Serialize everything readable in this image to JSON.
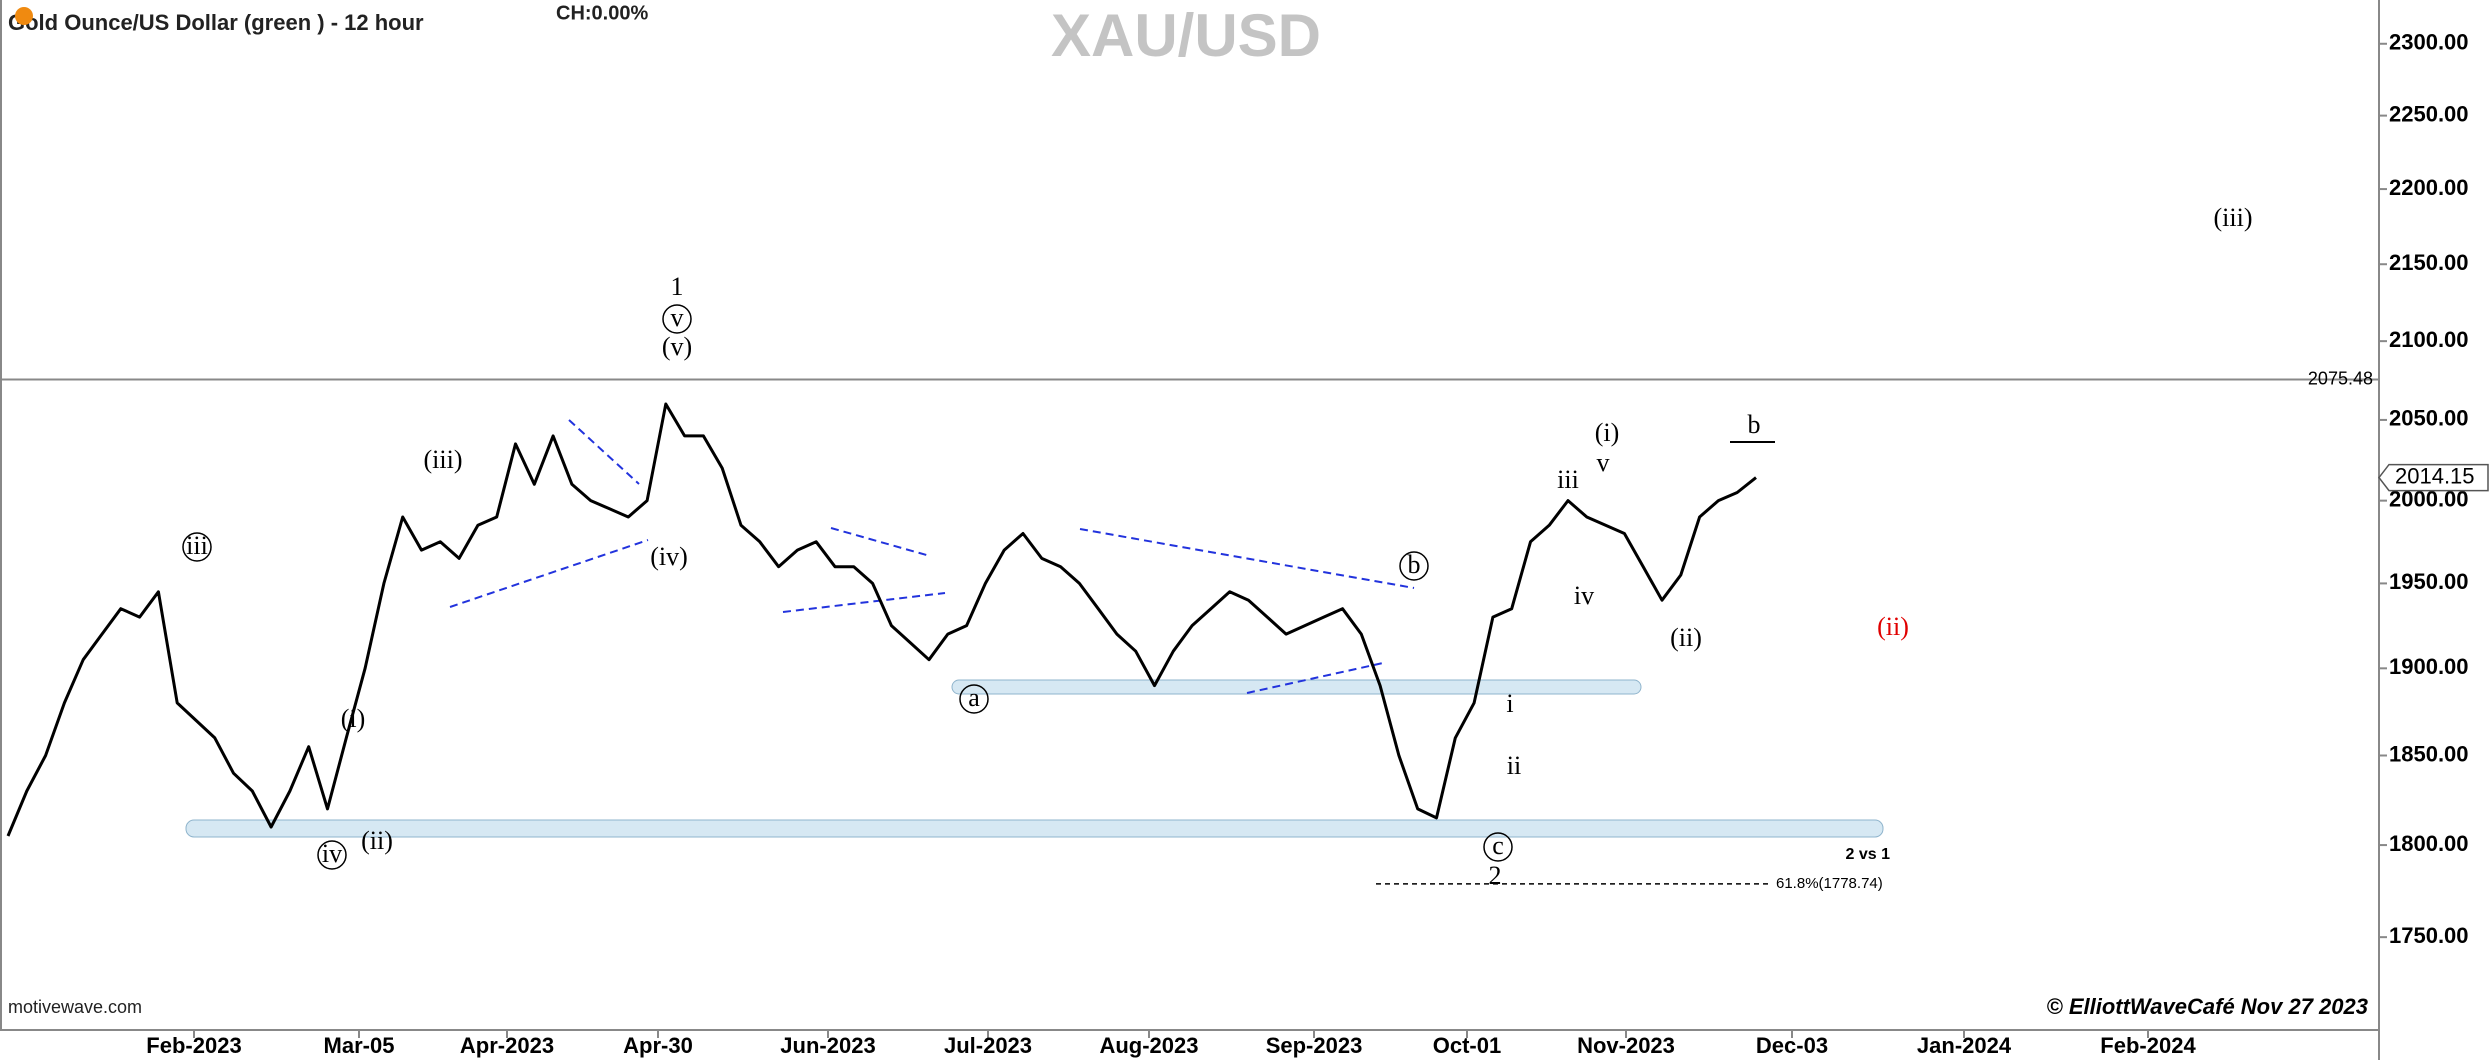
{
  "chart_data": {
    "type": "line",
    "title": "Gold Ounce/US Dollar (green ) - 12 hour",
    "change": "CH:0.00%",
    "watermark": "XAU/USD",
    "source": "motivewave.com",
    "credit": "© ElliottWaveCafé Nov 27 2023",
    "x_labels": [
      "Feb-2023",
      "Mar-05",
      "Apr-2023",
      "Apr-30",
      "Jun-2023",
      "Jul-2023",
      "Aug-2023",
      "Sep-2023",
      "Oct-01",
      "Nov-2023",
      "Dec-03",
      "Jan-2024",
      "Feb-2024"
    ],
    "series": [
      {
        "color": "#000000",
        "values": [
          1805,
          1830,
          1850,
          1880,
          1905,
          1920,
          1935,
          1930,
          1945,
          1880,
          1870,
          1860,
          1840,
          1830,
          1810,
          1830,
          1855,
          1820,
          1860,
          1900,
          1950,
          1990,
          1970,
          1975,
          1965,
          1985,
          1990,
          2035,
          2010,
          2040,
          2010,
          2000,
          1995,
          1990,
          2000,
          2060,
          2040,
          2040,
          2020,
          1985,
          1975,
          1960,
          1970,
          1975,
          1960,
          1960,
          1950,
          1925,
          1915,
          1905,
          1920,
          1925,
          1950,
          1970,
          1980,
          1965,
          1960,
          1950,
          1935,
          1920,
          1910,
          1890,
          1910,
          1925,
          1935,
          1945,
          1940,
          1930,
          1920,
          1925,
          1930,
          1935,
          1920,
          1890,
          1850,
          1820,
          1815,
          1860,
          1880,
          1930,
          1935,
          1975,
          1985,
          2000,
          1990,
          1985,
          1980,
          1960,
          1940,
          1955,
          1990,
          2000,
          2005,
          2014.15
        ]
      }
    ],
    "log_scale": true,
    "ylim": [
      1701,
      2331
    ],
    "yticks": [
      {
        "value": 1750,
        "label": "1750.00"
      },
      {
        "value": 1800,
        "label": "1800.00"
      },
      {
        "value": 1850,
        "label": "1850.00"
      },
      {
        "value": 1900,
        "label": "1900.00"
      },
      {
        "value": 1950,
        "label": "1950.00"
      },
      {
        "value": 2000,
        "label": "2000.00"
      },
      {
        "value": 2050,
        "label": "2050.00"
      },
      {
        "value": 2100,
        "label": "2100.00"
      },
      {
        "value": 2150,
        "label": "2150.00"
      },
      {
        "value": 2200,
        "label": "2200.00"
      },
      {
        "value": 2250,
        "label": "2250.00"
      },
      {
        "value": 2300,
        "label": "2300.00"
      }
    ],
    "level": 2075.48,
    "last_price": 2014.15,
    "fib": {
      "value": 1778.74,
      "label": "61.8%(1778.74)"
    },
    "ratio_note": "2 vs 1",
    "annotations": [
      {
        "text": "1"
      },
      {
        "text": "v",
        "circled": true
      },
      {
        "text": "(v)"
      },
      {
        "text": "(iii)"
      },
      {
        "text": "(iv)"
      },
      {
        "text": "iii",
        "circled": true
      },
      {
        "text": "(i)"
      },
      {
        "text": "iv",
        "circled": true
      },
      {
        "text": "(ii)"
      },
      {
        "text": "a",
        "circled": true
      },
      {
        "text": "b",
        "circled": true
      },
      {
        "text": "c",
        "circled": true
      },
      {
        "text": "2"
      },
      {
        "text": "i"
      },
      {
        "text": "ii"
      },
      {
        "text": "iii"
      },
      {
        "text": "iv"
      },
      {
        "text": "v"
      },
      {
        "text": "(i)"
      },
      {
        "text": "(ii)"
      },
      {
        "text": "b"
      },
      {
        "text": "(ii)",
        "color": "#e00000"
      },
      {
        "text": "(iii)"
      }
    ]
  }
}
